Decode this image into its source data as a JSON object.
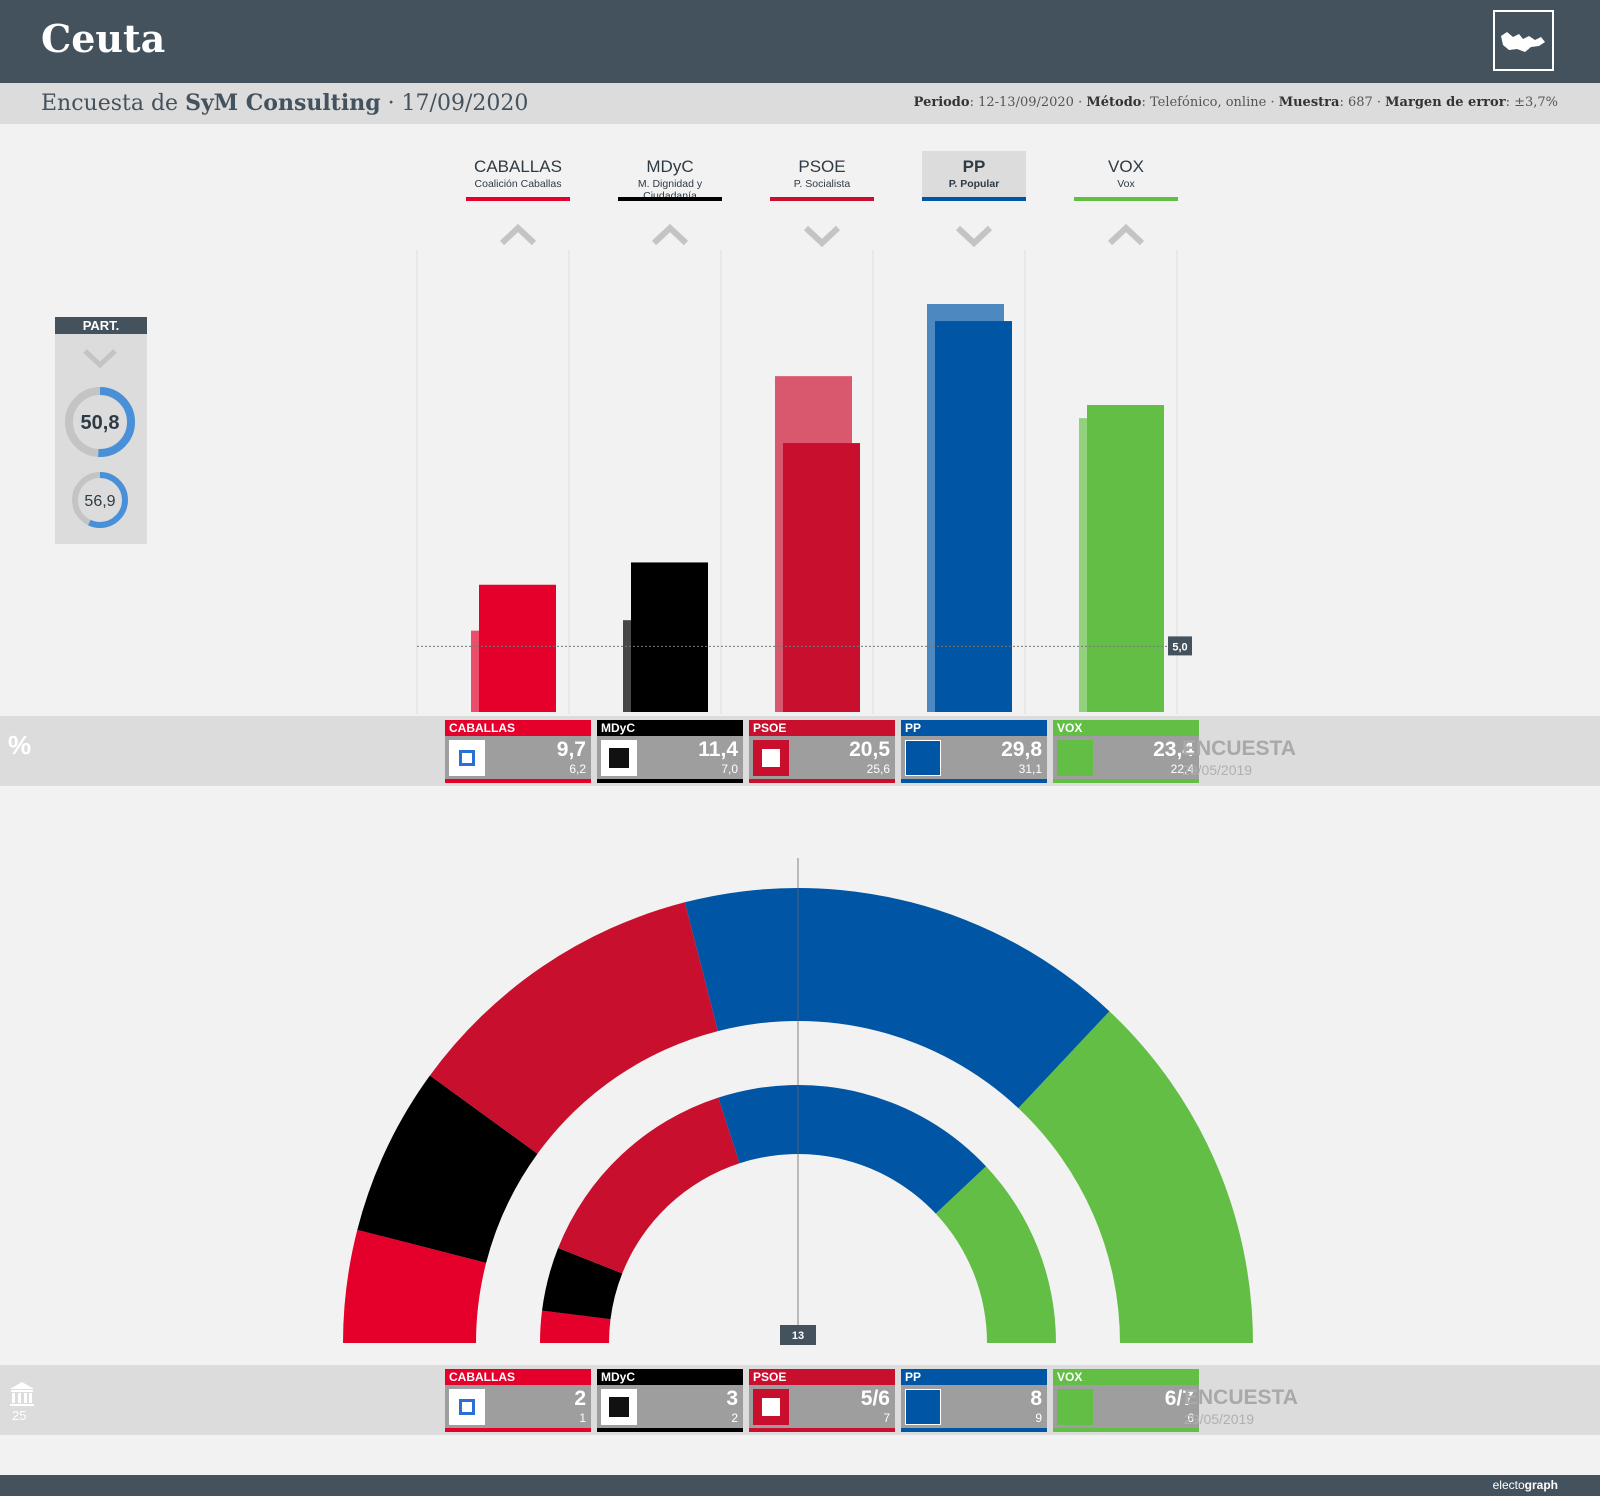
{
  "header": {
    "title": "Ceuta"
  },
  "subtitle": {
    "prefix": "Encuesta de ",
    "pollster": "SyM Consulting",
    "date": " · 17/09/2020"
  },
  "meta": {
    "periodo_label": "Periodo",
    "periodo": ": 12-13/09/2020 · ",
    "metodo_label": "Método",
    "metodo": ": Telefónico, online · ",
    "muestra_label": "Muestra",
    "muestra": ": 687 · ",
    "margen_label": "Margen de error",
    "margen": ": ±3,7%"
  },
  "participation": {
    "label": "PART.",
    "current": "50,8",
    "previous": "56,9",
    "current_value": 50.8,
    "previous_value": 56.9
  },
  "bands": {
    "percent_symbol": "%",
    "poll_label": "ENCUESTA",
    "previous_date": "29/05/2019",
    "seat_total": "25"
  },
  "colors": {
    "caballas": "#e4002b",
    "mdyc": "#000000",
    "psoe": "#c8102e",
    "pp": "#0055a5",
    "vox": "#63be45"
  },
  "footer": {
    "brand_prefix": "electo",
    "brand_suffix": "graph"
  },
  "parties": [
    {
      "short": "CABALLAS",
      "full": "Coalición Caballas",
      "color": "#e4002b",
      "trend": "up",
      "pct_label": "9,7",
      "pct_prev_label": "6,2",
      "seats_label": "2",
      "seats_prev_label": "1"
    },
    {
      "short": "MDyC",
      "full": "M. Dignidad y Ciudadanía",
      "color": "#000000",
      "trend": "up",
      "pct_label": "11,4",
      "pct_prev_label": "7,0",
      "seats_label": "3",
      "seats_prev_label": "2"
    },
    {
      "short": "PSOE",
      "full": "P. Socialista",
      "color": "#c8102e",
      "trend": "down",
      "pct_label": "20,5",
      "pct_prev_label": "25,6",
      "seats_label": "5/6",
      "seats_prev_label": "7"
    },
    {
      "short": "PP",
      "full": "P. Popular",
      "color": "#0055a5",
      "trend": "down",
      "pct_label": "29,8",
      "pct_prev_label": "31,1",
      "seats_label": "8",
      "seats_prev_label": "9"
    },
    {
      "short": "VOX",
      "full": "Vox",
      "color": "#63be45",
      "trend": "up",
      "pct_label": "23,4",
      "pct_prev_label": "22,4",
      "seats_label": "6/7",
      "seats_prev_label": "6"
    }
  ],
  "chart_data": [
    {
      "type": "bar",
      "categories": [
        "CABALLAS",
        "MDyC",
        "PSOE",
        "PP",
        "VOX"
      ],
      "series": [
        {
          "name": "ENCUESTA",
          "values": [
            9.7,
            11.4,
            20.5,
            29.8,
            23.4
          ]
        },
        {
          "name": "29/05/2019",
          "values": [
            6.2,
            7.0,
            25.6,
            31.1,
            22.4
          ]
        }
      ],
      "threshold": 5.0,
      "threshold_label": "5,0",
      "ylim": [
        0,
        31.1
      ]
    },
    {
      "type": "pie",
      "categories": [
        "CABALLAS",
        "MDyC",
        "PSOE",
        "PP",
        "VOX"
      ],
      "series": [
        {
          "name": "ENCUESTA",
          "values": [
            2,
            3,
            5.5,
            8,
            6.5
          ]
        },
        {
          "name": "29/05/2019",
          "values": [
            1,
            2,
            7,
            9,
            6
          ]
        }
      ],
      "total": 25,
      "majority": 13,
      "majority_label": "13"
    }
  ]
}
